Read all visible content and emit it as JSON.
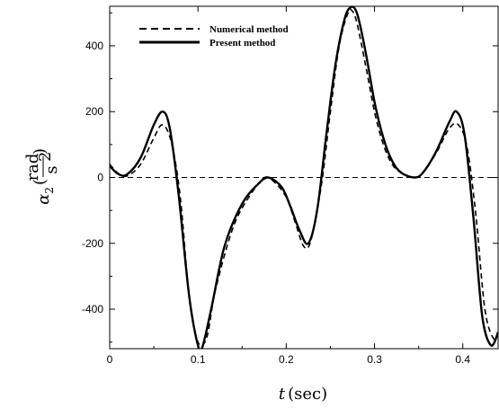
{
  "chart_data": {
    "type": "line",
    "xlabel_var": "t",
    "xlabel_unit": "(sec)",
    "ylabel_var": "α",
    "ylabel_sub": "2",
    "ylabel_num": "rad",
    "ylabel_den": "s",
    "ylabel_den_exp": "2",
    "xlim": [
      0,
      0.44
    ],
    "ylim": [
      -520,
      520
    ],
    "x_ticks": [
      0,
      0.1,
      0.2,
      0.3,
      0.4
    ],
    "x_tick_labels": [
      "0",
      "0.1",
      "0.2",
      "0.3",
      "0.4"
    ],
    "y_ticks": [
      -400,
      -200,
      0,
      200,
      400
    ],
    "y_tick_labels": [
      "-400",
      "-200",
      "0",
      "200",
      "400"
    ],
    "zero_line": true,
    "grid": false,
    "legend_position": "top-left",
    "series": [
      {
        "name": "Numerical method",
        "style": "dashed",
        "color": "#000000",
        "x": [
          0,
          0.01,
          0.02,
          0.035,
          0.05,
          0.06,
          0.07,
          0.08,
          0.09,
          0.1,
          0.11,
          0.12,
          0.14,
          0.16,
          0.175,
          0.185,
          0.2,
          0.21,
          0.22,
          0.228,
          0.24,
          0.25,
          0.26,
          0.27,
          0.275,
          0.28,
          0.29,
          0.3,
          0.31,
          0.32,
          0.33,
          0.345,
          0.355,
          0.37,
          0.385,
          0.395,
          0.405,
          0.415,
          0.425,
          0.435,
          0.44
        ],
        "y": [
          40,
          12,
          5,
          40,
          120,
          160,
          105,
          -60,
          -360,
          -500,
          -485,
          -340,
          -150,
          -50,
          -5,
          -10,
          -60,
          -135,
          -210,
          -190,
          -20,
          200,
          400,
          500,
          505,
          470,
          340,
          200,
          100,
          40,
          15,
          0,
          15,
          75,
          150,
          160,
          90,
          -120,
          -400,
          -490,
          -470
        ]
      },
      {
        "name": "Present method",
        "style": "solid",
        "color": "#000000",
        "x": [
          0,
          0.01,
          0.02,
          0.035,
          0.05,
          0.06,
          0.068,
          0.078,
          0.09,
          0.1,
          0.105,
          0.115,
          0.13,
          0.15,
          0.17,
          0.18,
          0.195,
          0.205,
          0.215,
          0.225,
          0.235,
          0.245,
          0.255,
          0.265,
          0.272,
          0.28,
          0.29,
          0.3,
          0.31,
          0.32,
          0.33,
          0.345,
          0.355,
          0.37,
          0.385,
          0.393,
          0.402,
          0.412,
          0.422,
          0.432,
          0.44
        ],
        "y": [
          35,
          10,
          10,
          60,
          160,
          200,
          150,
          -50,
          -360,
          -510,
          -515,
          -400,
          -210,
          -80,
          -15,
          0,
          -30,
          -90,
          -160,
          -200,
          -100,
          120,
          330,
          470,
          515,
          500,
          380,
          230,
          120,
          50,
          15,
          0,
          15,
          80,
          170,
          200,
          130,
          -120,
          -420,
          -510,
          -470
        ]
      }
    ]
  }
}
